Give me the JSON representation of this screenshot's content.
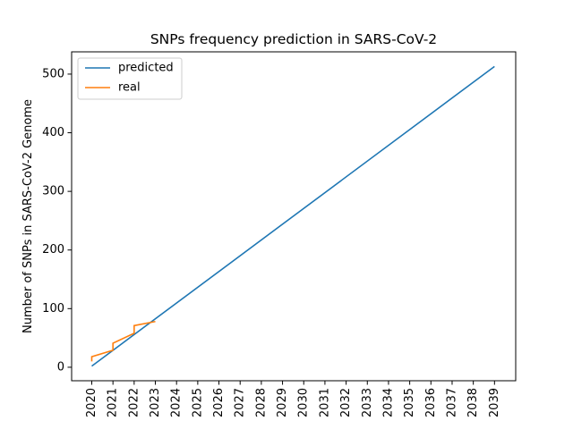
{
  "chart_data": {
    "type": "line",
    "title": "SNPs frequency prediction in SARS-CoV-2",
    "xlabel": "",
    "ylabel": "Number of SNPs in SARS-CoV-2 Genome",
    "x_ticks": [
      "2020",
      "2021",
      "2022",
      "2023",
      "2024",
      "2025",
      "2026",
      "2027",
      "2028",
      "2029",
      "2030",
      "2031",
      "2032",
      "2033",
      "2034",
      "2035",
      "2036",
      "2037",
      "2038",
      "2039"
    ],
    "y_ticks": [
      0,
      100,
      200,
      300,
      400,
      500
    ],
    "xlim": [
      2019.05,
      2040.0
    ],
    "ylim": [
      -23,
      538
    ],
    "grid": false,
    "legend_position": "top-left",
    "series": [
      {
        "name": "predicted",
        "color": "#1f77b4",
        "points": [
          [
            2020,
            2
          ],
          [
            2039,
            513
          ]
        ]
      },
      {
        "name": "real",
        "color": "#ff7f0e",
        "points": [
          [
            2020,
            10
          ],
          [
            2020,
            18
          ],
          [
            2021,
            29
          ],
          [
            2021,
            41
          ],
          [
            2022,
            58
          ],
          [
            2022,
            71
          ],
          [
            2023,
            78
          ]
        ]
      }
    ]
  }
}
